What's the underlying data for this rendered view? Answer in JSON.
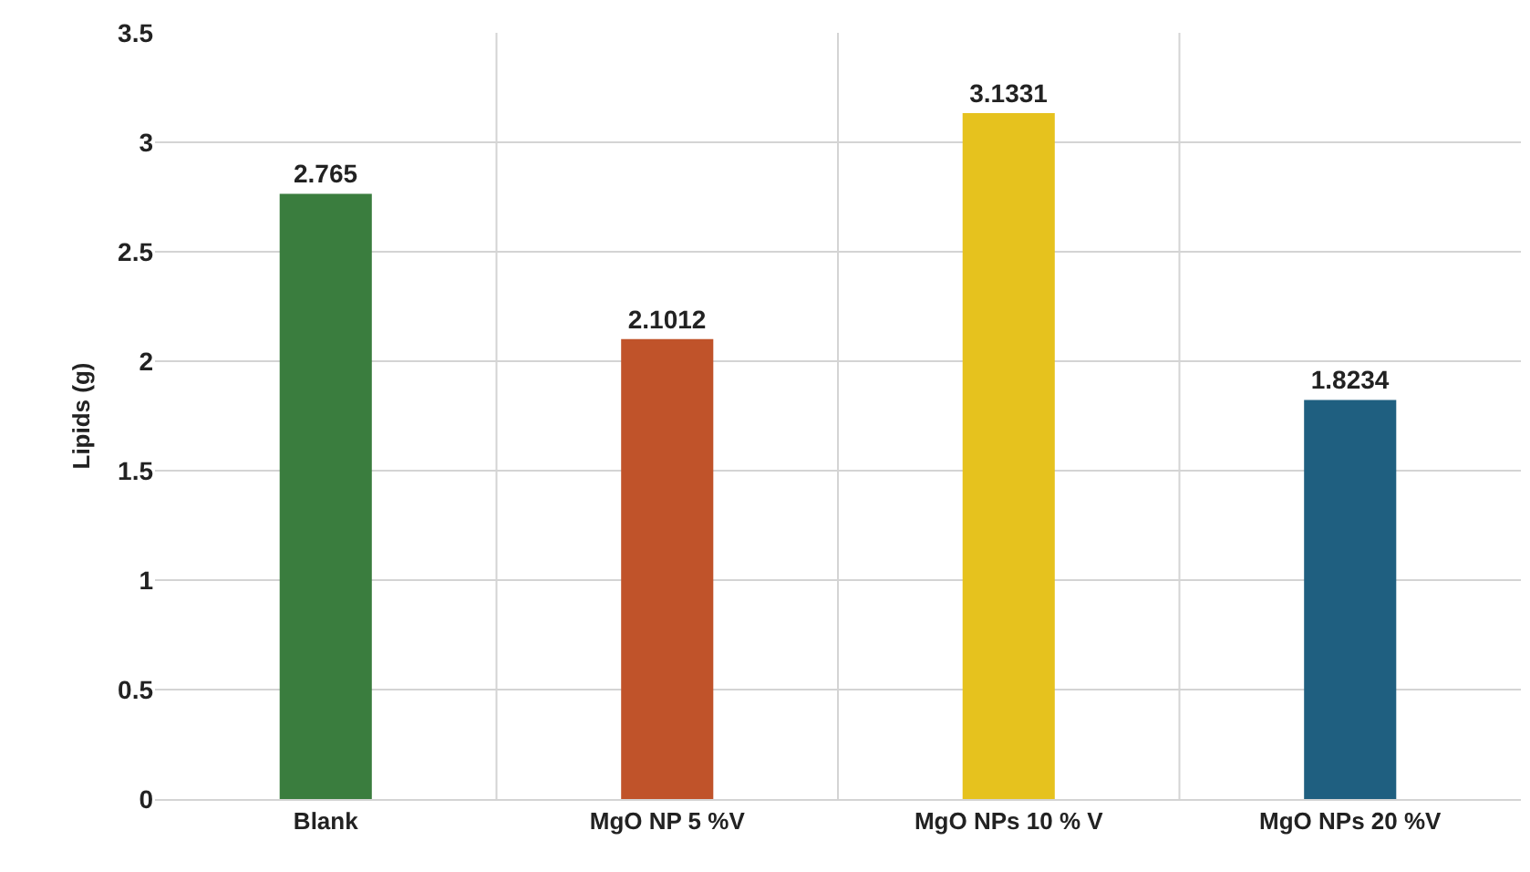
{
  "chart_data": {
    "type": "bar",
    "ylabel": "Lipids (g)",
    "categories": [
      "Blank",
      "MgO NP 5 %V",
      "MgO NPs 10 % V",
      "MgO NPs 20 %V"
    ],
    "values": [
      2.765,
      2.1012,
      3.1331,
      1.8234
    ],
    "colors": [
      "#3a7d3e",
      "#c0532a",
      "#e6c21e",
      "#1f5f80"
    ],
    "ylim": [
      0,
      3.5
    ],
    "yticks": [
      0,
      0.5,
      1,
      1.5,
      2,
      2.5,
      3,
      3.5
    ],
    "grid": true,
    "data_labels": true
  }
}
